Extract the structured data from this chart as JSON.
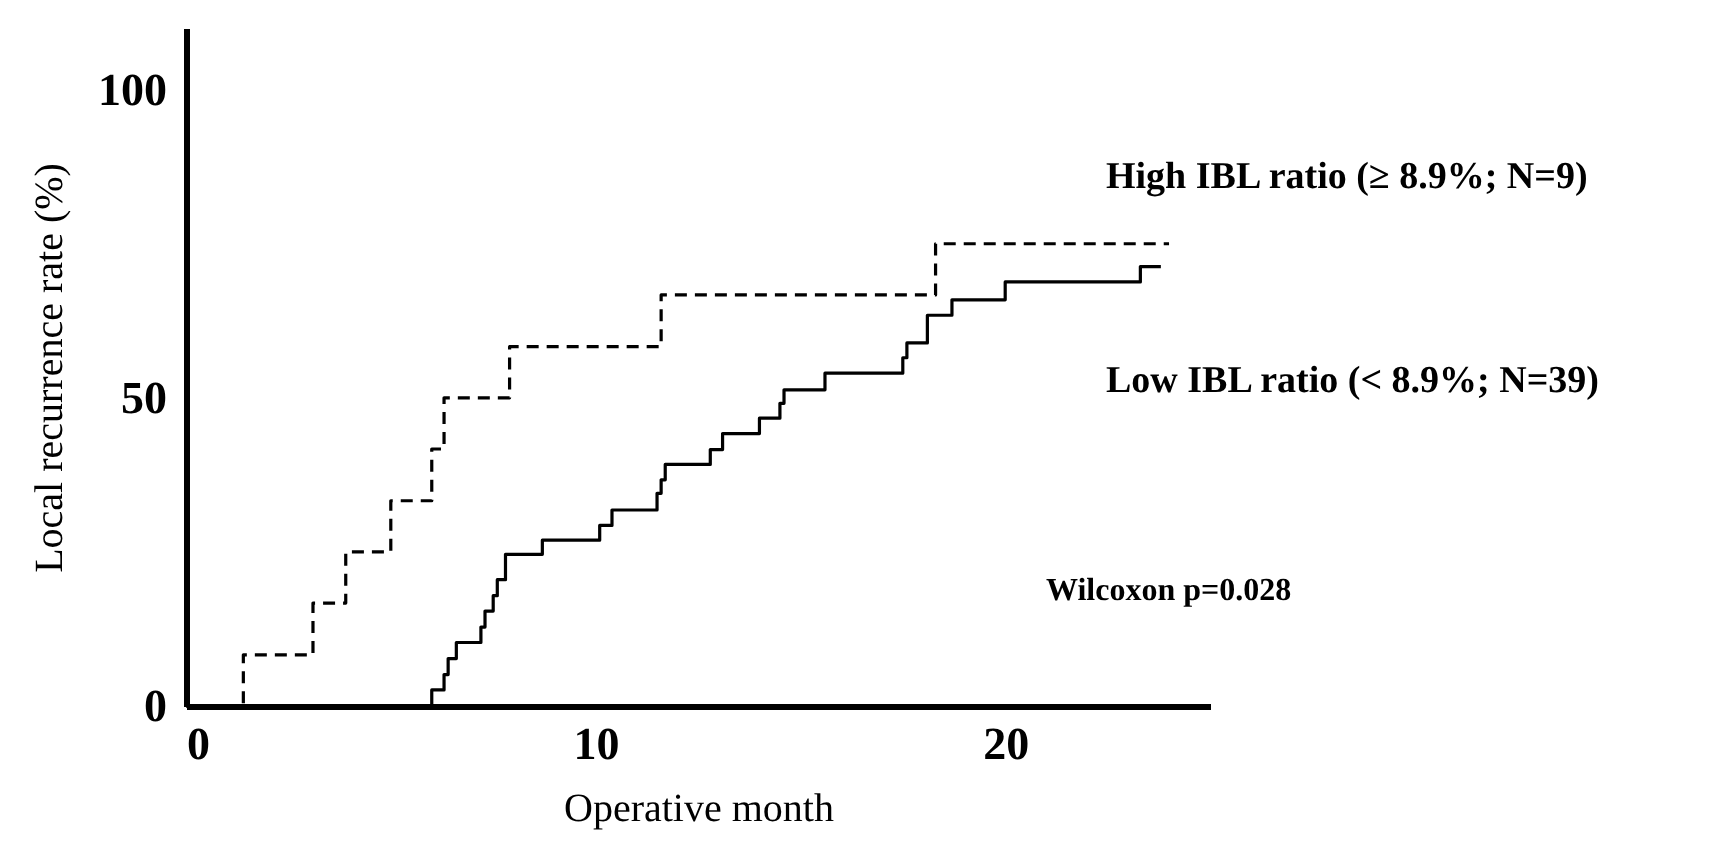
{
  "chart_data": {
    "type": "step",
    "xlabel": "Operative month",
    "ylabel": "Local recurrence rate (%)",
    "xlim": [
      0,
      25
    ],
    "ylim": [
      0,
      110
    ],
    "xticks": [
      0,
      10,
      20
    ],
    "yticks": [
      0,
      50,
      100
    ],
    "annotations": [
      "Wilcoxon p=0.028"
    ],
    "series": [
      {
        "name": "High IBL ratio (≥ 8.9%; N=9)",
        "color": "#000000",
        "line_style": "dashed",
        "x": [
          0,
          1.4,
          3.1,
          3.9,
          5.0,
          6.0,
          6.3,
          7.9,
          11.6,
          18.3,
          24.0
        ],
        "values": [
          0,
          8.3,
          16.7,
          25,
          33.3,
          41.7,
          50,
          58.3,
          66.7,
          75,
          75
        ]
      },
      {
        "name": "Low IBL ratio (< 8.9%; N=39)",
        "color": "#000000",
        "line_style": "solid",
        "x": [
          0,
          6.0,
          6.3,
          6.4,
          6.6,
          7.2,
          7.3,
          7.5,
          7.6,
          7.8,
          8.7,
          10.1,
          10.4,
          11.5,
          11.6,
          11.7,
          12.8,
          13.1,
          14.0,
          14.5,
          14.6,
          15.6,
          17.5,
          17.6,
          18.1,
          18.7,
          20.0,
          23.3,
          23.8
        ],
        "values": [
          0,
          2.6,
          5.1,
          7.7,
          10.3,
          12.8,
          15.4,
          17.9,
          20.5,
          24.6,
          26.9,
          29.3,
          31.8,
          34.5,
          36.7,
          39.2,
          41.6,
          44.2,
          46.7,
          49.1,
          51.3,
          54.0,
          56.5,
          58.9,
          63.4,
          65.9,
          68.8,
          71.3,
          71.3
        ]
      }
    ]
  }
}
